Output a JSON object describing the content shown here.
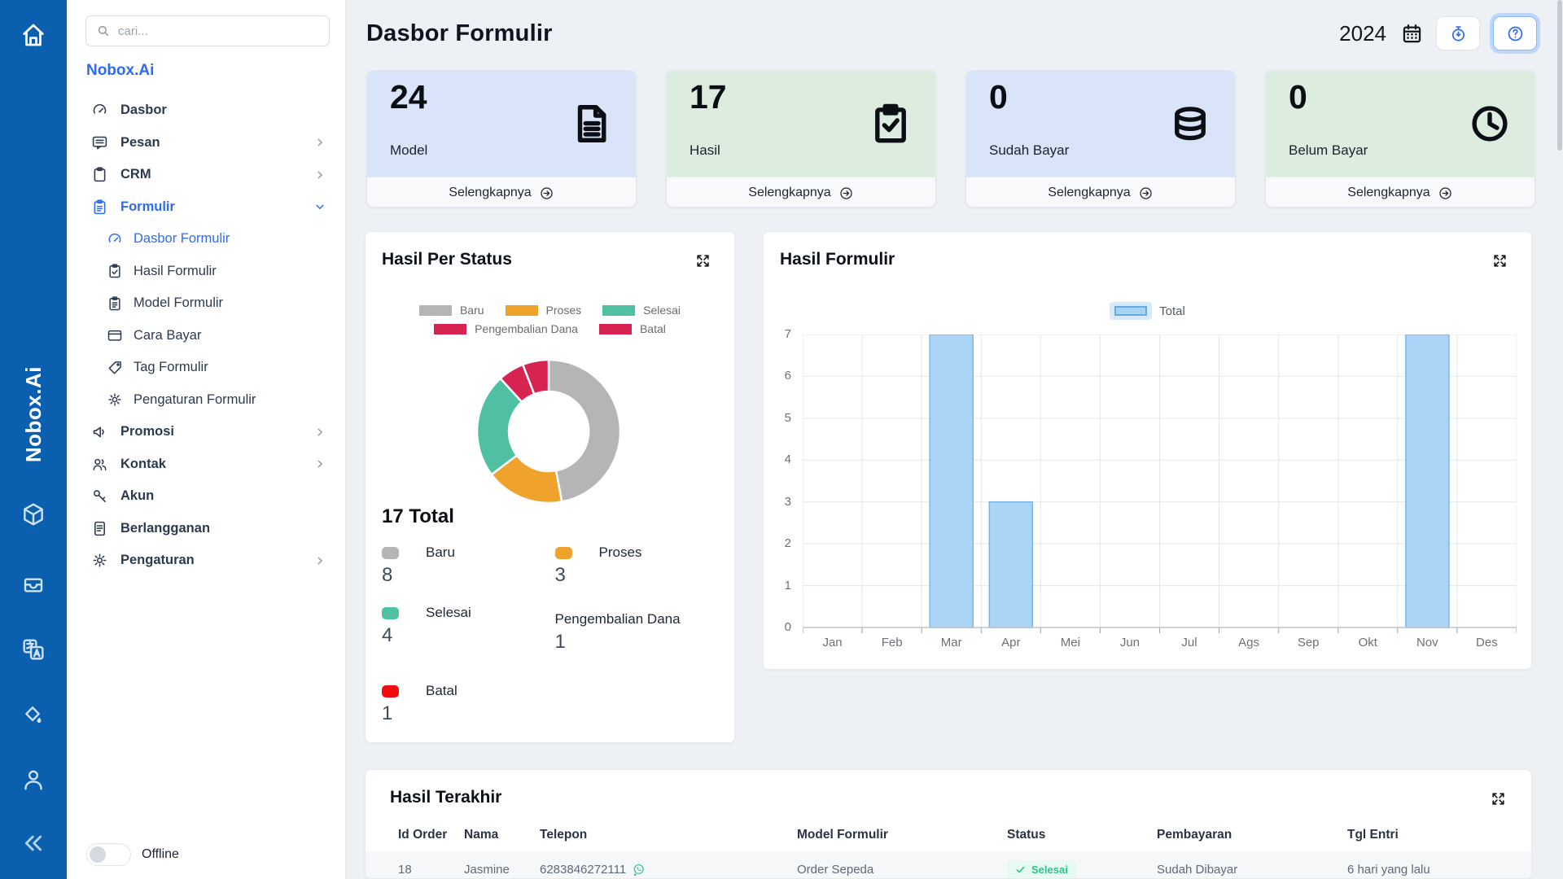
{
  "brand": {
    "name": "Nobox.Ai",
    "vertical": "Nobox.Ai"
  },
  "rail": {
    "icons": [
      "home",
      "cube",
      "inbox",
      "translate",
      "paint-pour",
      "person"
    ],
    "collapse_icon": "chevrons-left"
  },
  "sidebar": {
    "search_placeholder": "cari...",
    "offline_label": "Offline",
    "items": [
      {
        "label": "Dasbor",
        "icon": "gauge",
        "level": 1,
        "chevron": "none",
        "active": false
      },
      {
        "label": "Pesan",
        "icon": "chat",
        "level": 1,
        "chevron": "right",
        "active": false
      },
      {
        "label": "CRM",
        "icon": "clipboard",
        "level": 1,
        "chevron": "right",
        "active": false
      },
      {
        "label": "Formulir",
        "icon": "clipboard-list",
        "level": 1,
        "chevron": "down",
        "active": true
      },
      {
        "label": "Dasbor Formulir",
        "icon": "gauge",
        "level": 2,
        "chevron": "none",
        "active": true
      },
      {
        "label": "Hasil Formulir",
        "icon": "clipboard-check",
        "level": 2,
        "chevron": "none",
        "active": false
      },
      {
        "label": "Model Formulir",
        "icon": "clipboard-list",
        "level": 2,
        "chevron": "none",
        "active": false
      },
      {
        "label": "Cara Bayar",
        "icon": "card",
        "level": 2,
        "chevron": "none",
        "active": false
      },
      {
        "label": "Tag Formulir",
        "icon": "tag",
        "level": 2,
        "chevron": "none",
        "active": false
      },
      {
        "label": "Pengaturan Formulir",
        "icon": "gear",
        "level": 2,
        "chevron": "none",
        "active": false
      },
      {
        "label": "Promosi",
        "icon": "megaphone",
        "level": 1,
        "chevron": "right",
        "active": false
      },
      {
        "label": "Kontak",
        "icon": "users",
        "level": 1,
        "chevron": "right",
        "active": false
      },
      {
        "label": "Akun",
        "icon": "key",
        "level": 1,
        "chevron": "none",
        "active": false
      },
      {
        "label": "Berlangganan",
        "icon": "doc",
        "level": 1,
        "chevron": "none",
        "active": false
      },
      {
        "label": "Pengaturan",
        "icon": "gear",
        "level": 1,
        "chevron": "right",
        "active": false
      }
    ]
  },
  "header": {
    "title": "Dasbor Formulir",
    "year": "2024"
  },
  "stat_cards": [
    {
      "value": "24",
      "label": "Model",
      "link": "Selengkapnya",
      "icon": "document-icon",
      "bg": "blue"
    },
    {
      "value": "17",
      "label": "Hasil",
      "link": "Selengkapnya",
      "icon": "clipboard-check-icon",
      "bg": "green"
    },
    {
      "value": "0",
      "label": "Sudah Bayar",
      "link": "Selengkapnya",
      "icon": "coins-icon",
      "bg": "blue"
    },
    {
      "value": "0",
      "label": "Belum Bayar",
      "link": "Selengkapnya",
      "icon": "clock-icon",
      "bg": "green"
    }
  ],
  "chart_data": [
    {
      "type": "pie",
      "subtype": "donut",
      "title": "Hasil Per Status",
      "total": 17,
      "total_label": "17 Total",
      "legend_position": "top",
      "segments": [
        {
          "label": "Baru",
          "value": 8,
          "color": "#b5b5b5",
          "dot_color": "#b5b5b5"
        },
        {
          "label": "Proses",
          "value": 3,
          "color": "#f0a32c",
          "dot_color": "#f0a32c"
        },
        {
          "label": "Selesai",
          "value": 4,
          "color": "#4fc0a1",
          "dot_color": "#4fc0a1"
        },
        {
          "label": "Pengembalian Dana",
          "value": 1,
          "color": "#d7234f",
          "dot_color": "#d7234f"
        },
        {
          "label": "Batal",
          "value": 1,
          "color": "#d7234f",
          "dot_color": "#f20d0d"
        }
      ]
    },
    {
      "type": "bar",
      "title": "Hasil Formulir",
      "legend": "Total",
      "legend_position": "top",
      "grid": true,
      "categories": [
        "Jan",
        "Feb",
        "Mar",
        "Apr",
        "Mei",
        "Jun",
        "Jul",
        "Ags",
        "Sep",
        "Okt",
        "Nov",
        "Des"
      ],
      "values": [
        0,
        0,
        7,
        3,
        0,
        0,
        0,
        0,
        0,
        0,
        7,
        0
      ],
      "ylim": [
        0,
        7
      ],
      "yticks": [
        0,
        1,
        2,
        3,
        4,
        5,
        6,
        7
      ],
      "bar_color": "#abd4f6",
      "bar_border": "#79b6e8"
    }
  ],
  "table": {
    "title": "Hasil Terakhir",
    "columns": [
      "Id Order",
      "Nama",
      "Telepon",
      "Model Formulir",
      "Status",
      "Pembayaran",
      "Tgl Entri"
    ],
    "rows": [
      {
        "id_order": "18",
        "nama": "Jasmine",
        "telepon": "6283846272111",
        "model_formulir": "Order Sepeda",
        "status": "Selesai",
        "pembayaran": "Sudah Dibayar",
        "tgl_entri": "6 hari yang lalu"
      }
    ],
    "status_colors": {
      "badge_bg": "#e6faf1",
      "badge_text": "#2bc48a"
    }
  }
}
